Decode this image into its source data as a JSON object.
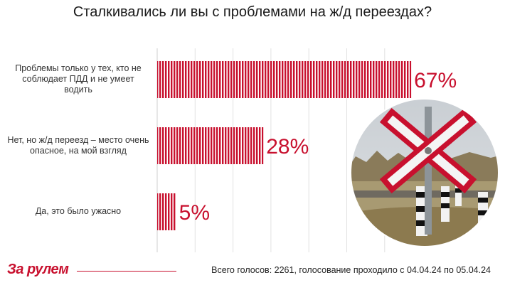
{
  "chart_data": {
    "type": "bar",
    "orientation": "horizontal",
    "title": "Сталкивались ли вы с проблемами на ж/д переездах?",
    "categories": [
      "Проблемы только у тех, кто не соблюдает ПДД и не умеет водить",
      "Нет, но ж/д переезд – место очень опасное, на мой взгляд",
      "Да, это было ужасно"
    ],
    "values": [
      67,
      28,
      5
    ],
    "value_labels": [
      "67%",
      "28%",
      "5%"
    ],
    "xlim": [
      0,
      100
    ],
    "grid": true,
    "legend": "none",
    "bar_color": "#c8102e",
    "label_color": "#c8102e"
  },
  "footer": {
    "brand": "За рулем",
    "text": "Всего голосов: 2261, голосование проходило с 04.04.24 по 05.04.24"
  },
  "photo": {
    "subject": "railroad-crossing-sign-photo"
  }
}
